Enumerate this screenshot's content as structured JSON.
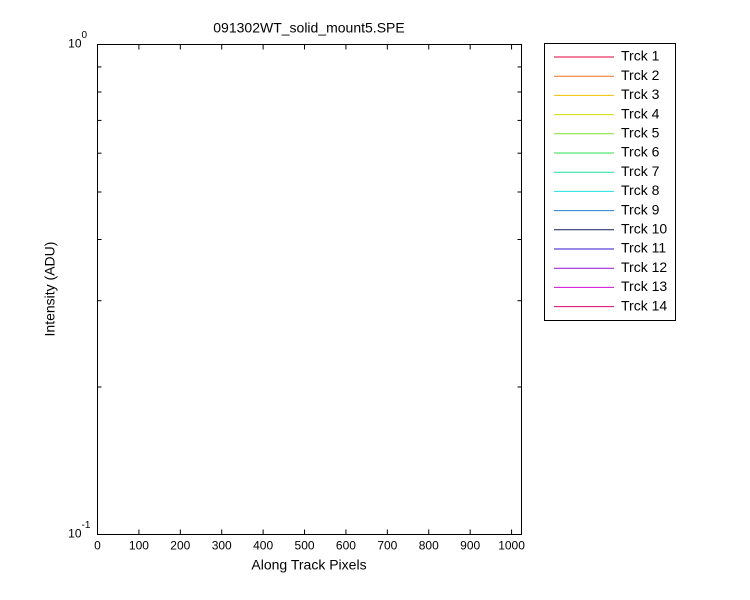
{
  "chart_data": {
    "type": "line",
    "title": "091302WT_solid_mount5.SPE",
    "xlabel": "Along Track Pixels",
    "ylabel": "Intensity (ADU)",
    "xlim": [
      0,
      1024
    ],
    "xticks": [
      0,
      100,
      200,
      300,
      400,
      500,
      600,
      700,
      800,
      900,
      1000
    ],
    "ylim": [
      0.1,
      1
    ],
    "ylog": true,
    "yticks": [
      {
        "value": 0.1,
        "label": "10",
        "exponent": "-1"
      },
      {
        "value": 1,
        "label": "10",
        "exponent": "0"
      }
    ],
    "yminorticks": [
      0.2,
      0.3,
      0.4,
      0.5,
      0.6,
      0.7,
      0.8,
      0.9
    ],
    "grid": false,
    "legend": "outside-right",
    "series": [
      {
        "name": "Trck 1",
        "color": "#e0003a"
      },
      {
        "name": "Trck 2",
        "color": "#f07020"
      },
      {
        "name": "Trck 3",
        "color": "#f0c000"
      },
      {
        "name": "Trck 4",
        "color": "#d0e000"
      },
      {
        "name": "Trck 5",
        "color": "#80e030"
      },
      {
        "name": "Trck 6",
        "color": "#30e050"
      },
      {
        "name": "Trck 7",
        "color": "#20e0a0"
      },
      {
        "name": "Trck 8",
        "color": "#20e0e0"
      },
      {
        "name": "Trck 9",
        "color": "#2080d0"
      },
      {
        "name": "Trck 10",
        "color": "#102060"
      },
      {
        "name": "Trck 11",
        "color": "#3010d0"
      },
      {
        "name": "Trck 12",
        "color": "#9010d0"
      },
      {
        "name": "Trck 13",
        "color": "#d010d0"
      },
      {
        "name": "Trck 14",
        "color": "#e00070"
      }
    ]
  }
}
